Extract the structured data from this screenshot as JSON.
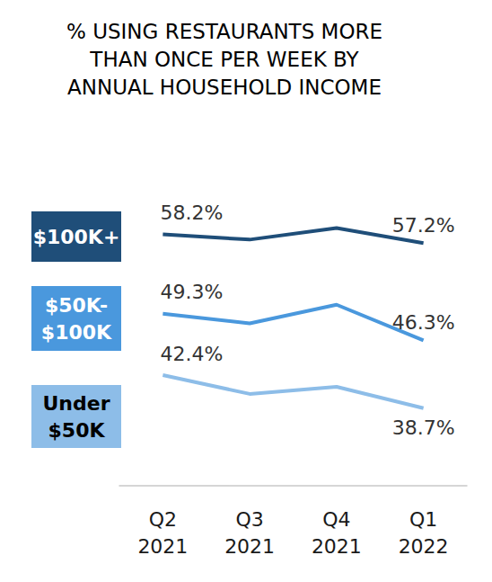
{
  "chart_data": {
    "type": "line",
    "title": "% USING RESTAURANTS MORE\nTHAN ONCE PER WEEK BY\nANNUAL HOUSEHOLD INCOME",
    "categories": [
      "Q2\n2021",
      "Q3\n2021",
      "Q4\n2021",
      "Q1\n2022"
    ],
    "series": [
      {
        "name": "$100K+",
        "color": "#1f4e79",
        "values": [
          58.2,
          57.6,
          58.9,
          57.2
        ],
        "value_labels": [
          "58.2%",
          null,
          null,
          "57.2%"
        ]
      },
      {
        "name": "$50K-\n$100K",
        "color": "#4a98dd",
        "values": [
          49.3,
          48.2,
          50.3,
          46.3
        ],
        "value_labels": [
          "49.3%",
          null,
          null,
          "46.3%"
        ]
      },
      {
        "name": "Under\n$50K",
        "color": "#8dbde8",
        "values": [
          42.4,
          40.3,
          41.1,
          38.7
        ],
        "value_labels": [
          "42.4%",
          null,
          null,
          "38.7%"
        ]
      }
    ],
    "ylim": [
      30,
      65
    ],
    "grid": false,
    "legend": "left",
    "data_labels": true,
    "tick_labels": "x"
  }
}
